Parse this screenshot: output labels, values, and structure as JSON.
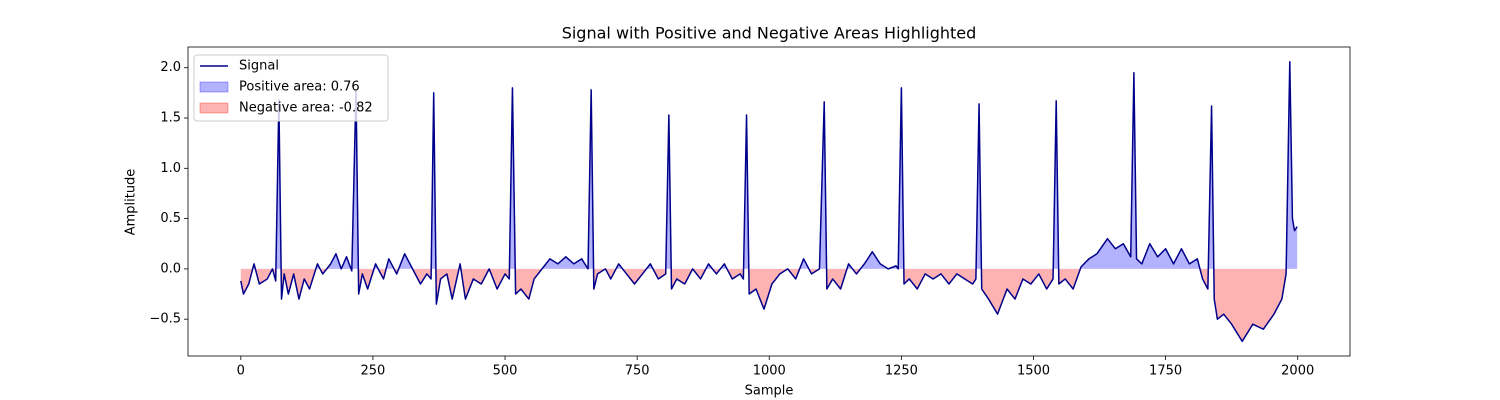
{
  "chart_data": {
    "type": "line",
    "title": "Signal with Positive and Negative Areas Highlighted",
    "x_label": "Sample",
    "y_label": "Amplitude",
    "x": [
      0,
      5,
      15,
      25,
      35,
      50,
      60,
      66,
      72,
      77,
      82,
      90,
      100,
      110,
      120,
      130,
      145,
      155,
      170,
      180,
      190,
      200,
      210,
      218,
      223,
      230,
      240,
      255,
      270,
      280,
      295,
      310,
      325,
      340,
      352,
      360,
      365,
      370,
      378,
      390,
      400,
      415,
      425,
      440,
      455,
      470,
      485,
      500,
      508,
      514,
      520,
      530,
      545,
      555,
      570,
      585,
      600,
      615,
      630,
      645,
      657,
      663,
      668,
      675,
      690,
      700,
      715,
      730,
      745,
      760,
      775,
      790,
      804,
      810,
      815,
      825,
      840,
      855,
      870,
      885,
      900,
      915,
      930,
      945,
      951,
      957,
      962,
      975,
      990,
      1005,
      1020,
      1035,
      1050,
      1065,
      1080,
      1095,
      1104,
      1109,
      1120,
      1135,
      1150,
      1165,
      1180,
      1195,
      1210,
      1225,
      1240,
      1244,
      1250,
      1255,
      1265,
      1280,
      1295,
      1310,
      1325,
      1340,
      1355,
      1370,
      1385,
      1391,
      1397,
      1402,
      1415,
      1432,
      1450,
      1465,
      1480,
      1495,
      1510,
      1525,
      1537,
      1543,
      1548,
      1560,
      1575,
      1590,
      1605,
      1620,
      1640,
      1655,
      1670,
      1684,
      1690,
      1695,
      1705,
      1720,
      1735,
      1750,
      1765,
      1780,
      1795,
      1810,
      1820,
      1830,
      1837,
      1842,
      1848,
      1860,
      1875,
      1895,
      1915,
      1935,
      1955,
      1970,
      1978,
      1985,
      1990,
      1994,
      1999
    ],
    "series": [
      {
        "name": "Signal",
        "color": "#00008b",
        "values": [
          -0.12,
          -0.25,
          -0.15,
          0.05,
          -0.15,
          -0.1,
          0.0,
          -0.12,
          1.68,
          -0.3,
          -0.05,
          -0.25,
          -0.05,
          -0.3,
          -0.1,
          -0.2,
          0.05,
          -0.05,
          0.05,
          0.15,
          0.0,
          0.12,
          -0.02,
          1.78,
          -0.25,
          -0.05,
          -0.2,
          0.05,
          -0.1,
          0.1,
          -0.05,
          0.15,
          0.0,
          -0.15,
          -0.05,
          -0.1,
          1.75,
          -0.35,
          -0.1,
          -0.05,
          -0.3,
          0.05,
          -0.3,
          -0.1,
          -0.15,
          0.0,
          -0.2,
          -0.05,
          -0.1,
          1.8,
          -0.25,
          -0.2,
          -0.3,
          -0.1,
          0.0,
          0.1,
          0.05,
          0.12,
          0.05,
          0.1,
          0.0,
          1.78,
          -0.2,
          -0.05,
          0.0,
          -0.1,
          0.05,
          -0.05,
          -0.15,
          -0.05,
          0.05,
          -0.1,
          -0.05,
          1.53,
          -0.2,
          -0.1,
          -0.15,
          0.0,
          -0.1,
          0.05,
          -0.05,
          0.05,
          -0.1,
          -0.05,
          -0.1,
          1.53,
          -0.25,
          -0.2,
          -0.4,
          -0.15,
          -0.05,
          0.0,
          -0.1,
          0.1,
          -0.05,
          0.0,
          1.66,
          -0.2,
          -0.1,
          -0.2,
          0.05,
          -0.05,
          0.05,
          0.17,
          0.05,
          0.0,
          0.03,
          0.0,
          1.8,
          -0.15,
          -0.1,
          -0.2,
          -0.05,
          -0.1,
          -0.05,
          -0.15,
          -0.05,
          -0.1,
          -0.15,
          -0.1,
          1.64,
          -0.2,
          -0.3,
          -0.45,
          -0.2,
          -0.3,
          -0.1,
          -0.15,
          -0.05,
          -0.2,
          -0.1,
          1.67,
          -0.15,
          -0.1,
          -0.2,
          0.02,
          0.1,
          0.15,
          0.3,
          0.2,
          0.25,
          0.12,
          1.95,
          0.1,
          0.05,
          0.25,
          0.12,
          0.2,
          0.05,
          0.2,
          0.05,
          0.1,
          -0.1,
          -0.2,
          1.62,
          -0.3,
          -0.5,
          -0.45,
          -0.55,
          -0.72,
          -0.55,
          -0.6,
          -0.45,
          -0.3,
          -0.05,
          2.06,
          0.5,
          0.38,
          0.42
        ]
      }
    ],
    "fills": [
      {
        "name": "Positive area: 0.76",
        "color": "#0000ff"
      },
      {
        "name": "Negative area: -0.82",
        "color": "#ff0000"
      }
    ],
    "fill_alpha": 0.3,
    "xlim": [
      -99.95,
      2098.95
    ],
    "ylim": [
      -0.866,
      2.206
    ],
    "xticks": [
      0,
      250,
      500,
      750,
      1000,
      1250,
      1500,
      1750,
      2000
    ],
    "yticks": [
      {
        "value": -0.5,
        "label": "−0.5"
      },
      {
        "value": 0,
        "label": "0.0"
      },
      0.5,
      {
        "value": 1,
        "label": "1.0"
      },
      1.5,
      {
        "value": 2,
        "label": "2.0"
      }
    ],
    "legend": "upper left"
  }
}
